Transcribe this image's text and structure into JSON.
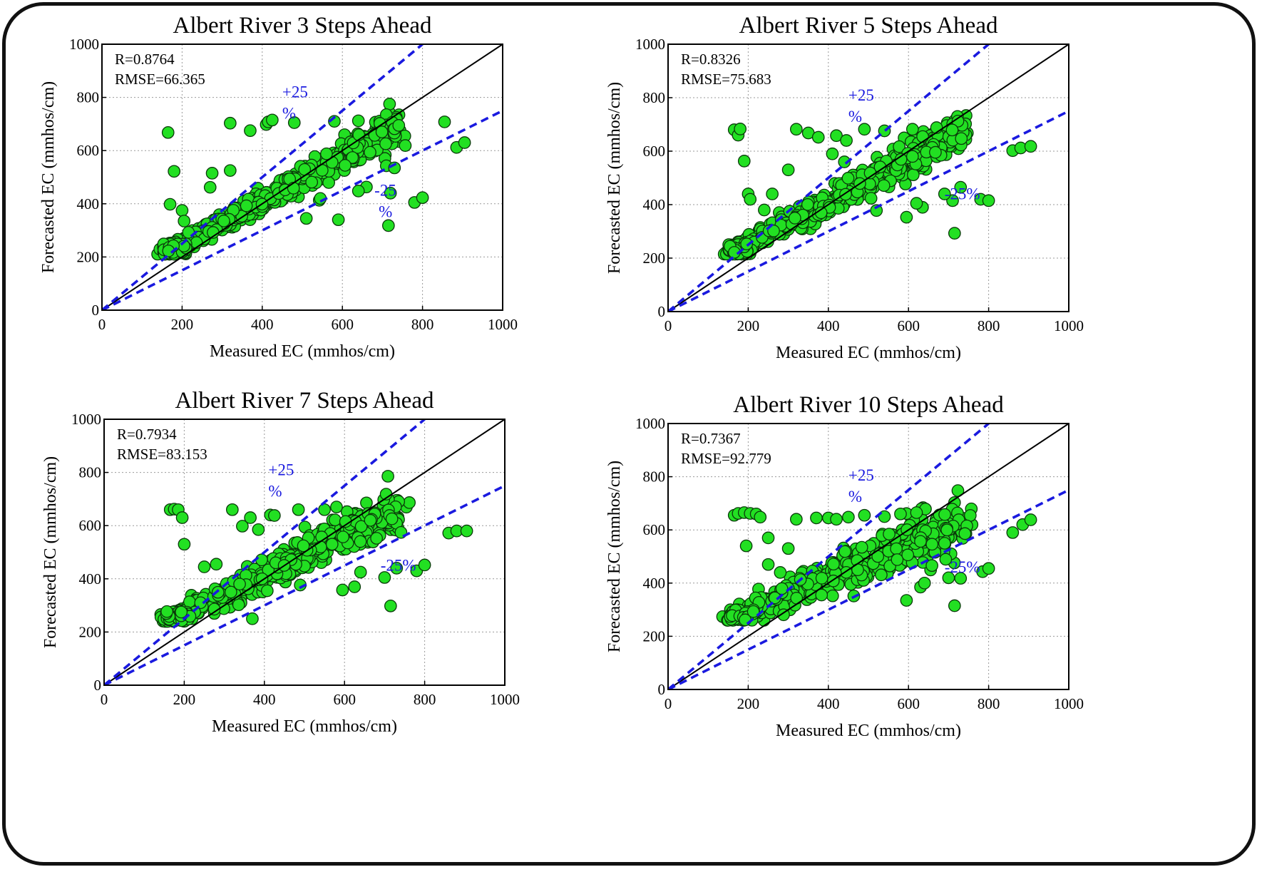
{
  "figure": {
    "frame_style": "rounded-border"
  },
  "colors": {
    "point_fill": "#22e022",
    "point_stroke": "#0a3a0a",
    "band_line": "#1a1adf",
    "identity_line": "#000000",
    "grid": "#9a9a9a",
    "annotation_text": "#1a1adf"
  },
  "chart_data": [
    {
      "type": "scatter",
      "title": "Albert River 3 Steps Ahead",
      "xlabel": "Measured EC (mmhos/cm)",
      "ylabel": "Forecasted EC (mmhos/cm)",
      "xlim": [
        0,
        1000
      ],
      "ylim": [
        0,
        1000
      ],
      "xticks": [
        "0",
        "200",
        "400",
        "600",
        "800",
        "1000"
      ],
      "yticks": [
        "0",
        "200",
        "400",
        "600",
        "800",
        "1000"
      ],
      "grid": true,
      "stats": {
        "r": "R=0.8764",
        "rmse": "RMSE=66.365"
      },
      "lines": [
        {
          "name": "1:1",
          "slope": 1
        },
        {
          "name": "+25%",
          "slope": 1.25
        },
        {
          "name": "-25%",
          "slope": 0.75
        }
      ],
      "band_labels": {
        "plus_line1": "+25",
        "plus_line2": "%",
        "minus_line1": "-25",
        "minus_line2": "%"
      },
      "outliers": [
        [
          165,
          668
        ],
        [
          180,
          522
        ],
        [
          170,
          398
        ],
        [
          320,
          703
        ],
        [
          370,
          675
        ],
        [
          410,
          698
        ],
        [
          415,
          708
        ],
        [
          425,
          715
        ],
        [
          480,
          705
        ],
        [
          580,
          710
        ],
        [
          640,
          712
        ],
        [
          855,
          708
        ],
        [
          885,
          612
        ],
        [
          905,
          630
        ],
        [
          780,
          405
        ],
        [
          800,
          423
        ],
        [
          715,
          318
        ],
        [
          730,
          535
        ],
        [
          660,
          463
        ],
        [
          640,
          448
        ],
        [
          720,
          440
        ],
        [
          590,
          340
        ],
        [
          200,
          375
        ],
        [
          205,
          335
        ],
        [
          270,
          462
        ],
        [
          275,
          515
        ],
        [
          320,
          525
        ],
        [
          510,
          345
        ],
        [
          545,
          420
        ]
      ],
      "cloud": [
        [
          150,
          210
        ],
        [
          740,
          690
        ]
      ],
      "cloud_spread": 60,
      "seed": 1
    },
    {
      "type": "scatter",
      "title": "Albert River 5 Steps Ahead",
      "xlabel": "Measured EC (mmhos/cm)",
      "ylabel": "Forecasted EC (mmhos/cm)",
      "xlim": [
        0,
        1000
      ],
      "ylim": [
        0,
        1000
      ],
      "xticks": [
        "0",
        "200",
        "400",
        "600",
        "800",
        "1000"
      ],
      "yticks": [
        "0",
        "200",
        "400",
        "600",
        "800",
        "1000"
      ],
      "grid": true,
      "stats": {
        "r": "R=0.8326",
        "rmse": "RMSE=75.683"
      },
      "lines": [
        {
          "name": "1:1",
          "slope": 1
        },
        {
          "name": "+25%",
          "slope": 1.25
        },
        {
          "name": "-25%",
          "slope": 0.75
        }
      ],
      "band_labels": {
        "plus_line1": "+25",
        "plus_line2": "%",
        "minus_line1": "-25%",
        "minus_line2": ""
      },
      "outliers": [
        [
          165,
          680
        ],
        [
          175,
          660
        ],
        [
          180,
          683
        ],
        [
          190,
          563
        ],
        [
          320,
          682
        ],
        [
          350,
          668
        ],
        [
          375,
          652
        ],
        [
          420,
          658
        ],
        [
          445,
          640
        ],
        [
          490,
          682
        ],
        [
          540,
          676
        ],
        [
          610,
          682
        ],
        [
          670,
          688
        ],
        [
          860,
          602
        ],
        [
          880,
          612
        ],
        [
          905,
          618
        ],
        [
          780,
          420
        ],
        [
          800,
          415
        ],
        [
          710,
          415
        ],
        [
          715,
          293
        ],
        [
          730,
          465
        ],
        [
          595,
          353
        ],
        [
          635,
          390
        ],
        [
          620,
          405
        ],
        [
          200,
          440
        ],
        [
          205,
          420
        ],
        [
          240,
          380
        ],
        [
          260,
          440
        ],
        [
          300,
          530
        ],
        [
          410,
          590
        ],
        [
          440,
          560
        ],
        [
          520,
          378
        ],
        [
          690,
          440
        ]
      ],
      "cloud": [
        [
          150,
          215
        ],
        [
          740,
          680
        ]
      ],
      "cloud_spread": 70,
      "seed": 2
    },
    {
      "type": "scatter",
      "title": "Albert River 7 Steps Ahead",
      "xlabel": "Measured EC (mmhos/cm)",
      "ylabel": "Forecasted EC (mmhos/cm)",
      "xlim": [
        0,
        1000
      ],
      "ylim": [
        0,
        1000
      ],
      "xticks": [
        "0",
        "200",
        "400",
        "600",
        "800",
        "1000"
      ],
      "yticks": [
        "0",
        "200",
        "400",
        "600",
        "800",
        "1000"
      ],
      "grid": true,
      "stats": {
        "r": "R=0.7934",
        "rmse": "RMSE=83.153"
      },
      "lines": [
        {
          "name": "1:1",
          "slope": 1
        },
        {
          "name": "+25%",
          "slope": 1.25
        },
        {
          "name": "-25%",
          "slope": 0.75
        }
      ],
      "band_labels": {
        "plus_line1": "+25",
        "plus_line2": "%",
        "minus_line1": "-25%",
        "minus_line2": ""
      },
      "outliers": [
        [
          165,
          660
        ],
        [
          175,
          662
        ],
        [
          185,
          660
        ],
        [
          195,
          630
        ],
        [
          200,
          530
        ],
        [
          320,
          660
        ],
        [
          345,
          598
        ],
        [
          365,
          630
        ],
        [
          385,
          585
        ],
        [
          415,
          640
        ],
        [
          425,
          638
        ],
        [
          485,
          660
        ],
        [
          550,
          660
        ],
        [
          580,
          670
        ],
        [
          860,
          572
        ],
        [
          880,
          580
        ],
        [
          905,
          580
        ],
        [
          780,
          430
        ],
        [
          800,
          452
        ],
        [
          700,
          405
        ],
        [
          715,
          298
        ],
        [
          730,
          440
        ],
        [
          595,
          358
        ],
        [
          625,
          370
        ],
        [
          640,
          425
        ],
        [
          280,
          455
        ],
        [
          250,
          445
        ],
        [
          370,
          250
        ]
      ],
      "cloud": [
        [
          155,
          240
        ],
        [
          740,
          660
        ]
      ],
      "cloud_spread": 80,
      "seed": 3
    },
    {
      "type": "scatter",
      "title": "Albert River 10 Steps Ahead",
      "xlabel": "Measured EC (mmhos/cm)",
      "ylabel": "Forecasted EC (mmhos/cm)",
      "xlim": [
        0,
        1000
      ],
      "ylim": [
        0,
        1000
      ],
      "xticks": [
        "0",
        "200",
        "400",
        "600",
        "800",
        "1000"
      ],
      "yticks": [
        "0",
        "200",
        "400",
        "600",
        "800",
        "1000"
      ],
      "grid": true,
      "stats": {
        "r": "R=0.7367",
        "rmse": "RMSE=92.779"
      },
      "lines": [
        {
          "name": "1:1",
          "slope": 1
        },
        {
          "name": "+25%",
          "slope": 1.25
        },
        {
          "name": "-25%",
          "slope": 0.75
        }
      ],
      "band_labels": {
        "plus_line1": "+25",
        "plus_line2": "%",
        "minus_line1": "-25%",
        "minus_line2": ""
      },
      "outliers": [
        [
          165,
          655
        ],
        [
          175,
          662
        ],
        [
          190,
          665
        ],
        [
          205,
          662
        ],
        [
          220,
          660
        ],
        [
          230,
          648
        ],
        [
          195,
          540
        ],
        [
          250,
          570
        ],
        [
          320,
          640
        ],
        [
          370,
          645
        ],
        [
          400,
          645
        ],
        [
          420,
          640
        ],
        [
          450,
          648
        ],
        [
          490,
          655
        ],
        [
          540,
          650
        ],
        [
          580,
          660
        ],
        [
          620,
          665
        ],
        [
          860,
          590
        ],
        [
          885,
          620
        ],
        [
          905,
          638
        ],
        [
          785,
          443
        ],
        [
          800,
          455
        ],
        [
          700,
          420
        ],
        [
          715,
          315
        ],
        [
          730,
          418
        ],
        [
          595,
          335
        ],
        [
          630,
          385
        ],
        [
          640,
          400
        ],
        [
          300,
          530
        ],
        [
          280,
          440
        ],
        [
          250,
          470
        ]
      ],
      "cloud": [
        [
          155,
          260
        ],
        [
          740,
          640
        ]
      ],
      "cloud_spread": 90,
      "seed": 4
    }
  ]
}
